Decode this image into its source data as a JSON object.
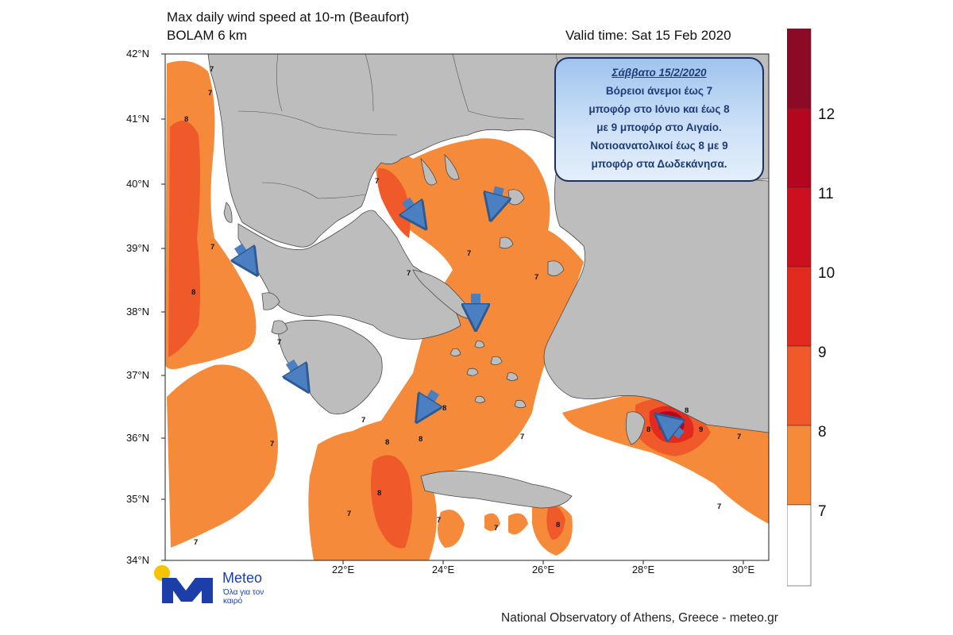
{
  "header": {
    "title_line1": "Max daily wind speed at 10-m (Beaufort)",
    "title_line2": "BOLAM 6 km",
    "valid_time": "Valid time: Sat 15 Feb 2020"
  },
  "axes": {
    "lat_labels": [
      "42°N",
      "41°N",
      "40°N",
      "39°N",
      "38°N",
      "37°N",
      "36°N",
      "35°N",
      "34°N"
    ],
    "lon_labels": [
      "22°E",
      "24°E",
      "26°E",
      "28°E",
      "30°E"
    ]
  },
  "callout": {
    "date": "Σάββατο 15/2/2020",
    "lines": [
      "Βόρειοι άνεμοι έως  7",
      "μποφόρ στο Ιόνιο και έως 8",
      "με 9 μποφόρ στο Αιγαίο.",
      "Νοτιοανατολικοί έως 8 με 9",
      "μποφόρ στα Δωδεκάνησα."
    ]
  },
  "legend": {
    "labels": [
      "12",
      "11",
      "10",
      "9",
      "8",
      "7"
    ],
    "colors": [
      "#8c0a26",
      "#b3071f",
      "#cc1020",
      "#e32a1e",
      "#f05a2a",
      "#f58a3a",
      "#ffffff"
    ]
  },
  "map_labels": [
    "7",
    "7",
    "8",
    "7",
    "8",
    "7",
    "7",
    "7",
    "7",
    "7",
    "7",
    "7",
    "7",
    "7",
    "8",
    "8",
    "8",
    "8",
    "7",
    "7",
    "7",
    "8",
    "8",
    "8",
    "9",
    "7",
    "7"
  ],
  "colors": {
    "land": "#bdbdbd",
    "sea_calm": "#ffffff",
    "bf7": "#f58a3a",
    "bf8": "#f05a2a",
    "bf9": "#e32a1e",
    "arrow": "#4a7fc1"
  },
  "logo": {
    "word": "Meteo",
    "tagline": "Όλα για τον καιρό"
  },
  "footer": {
    "credit": "National Observatory of Athens, Greece - meteo.gr"
  }
}
